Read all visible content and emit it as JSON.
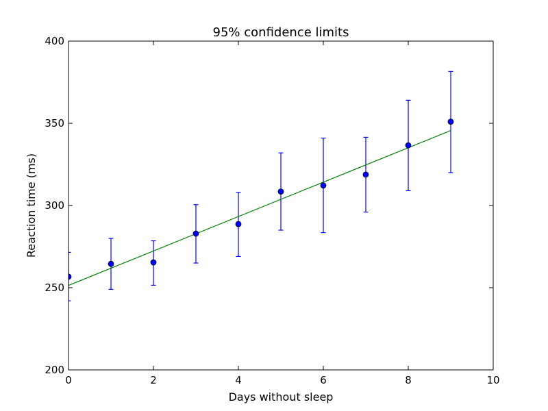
{
  "chart_data": {
    "type": "scatter",
    "title": "95% confidence limits",
    "xlabel": "Days without sleep",
    "ylabel": "Reaction time (ms)",
    "xlim": [
      0,
      10
    ],
    "ylim": [
      200,
      400
    ],
    "xticks": [
      0,
      2,
      4,
      6,
      8,
      10
    ],
    "yticks": [
      200,
      250,
      300,
      350,
      400
    ],
    "grid": false,
    "series": [
      {
        "kind": "points-with-error-bars",
        "color": "#0000ff",
        "x": [
          0,
          1,
          2,
          3,
          4,
          5,
          6,
          7,
          8,
          9
        ],
        "y": [
          256.7,
          264.5,
          265.4,
          282.9,
          288.7,
          308.5,
          312.2,
          318.8,
          336.6,
          351.0
        ],
        "y_low": [
          242,
          249,
          251.5,
          265,
          269,
          285,
          283.5,
          296,
          309,
          320
        ],
        "y_high": [
          271.5,
          280,
          278.5,
          300.5,
          308,
          332,
          341,
          341.5,
          364,
          381.5
        ]
      },
      {
        "kind": "fit-line",
        "color": "#008000",
        "x": [
          0,
          9
        ],
        "y": [
          251.4,
          345.6
        ]
      }
    ]
  }
}
